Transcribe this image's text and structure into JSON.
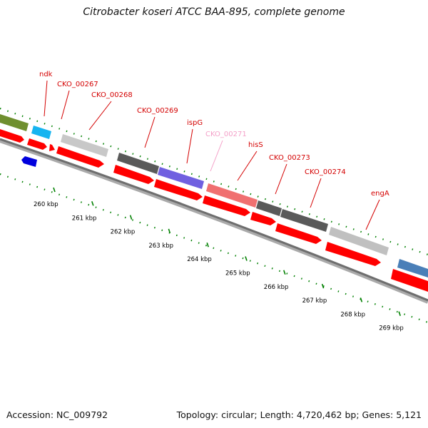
{
  "header": {
    "title": "Citrobacter koseri ATCC BAA-895, complete genome"
  },
  "footer": {
    "accession": "Accession: NC_009792",
    "summary": "Topology: circular; Length: 4,720,462 bp; Genes: 5,121"
  },
  "gene_labels": [
    {
      "text": "ndk",
      "color": "#d40000"
    },
    {
      "text": "CKO_00267",
      "color": "#d40000"
    },
    {
      "text": "CKO_00268",
      "color": "#d40000"
    },
    {
      "text": "CKO_00269",
      "color": "#d40000"
    },
    {
      "text": "ispG",
      "color": "#d40000"
    },
    {
      "text": "CKO_00271",
      "color": "#f4a0c8"
    },
    {
      "text": "hisS",
      "color": "#d40000"
    },
    {
      "text": "CKO_00273",
      "color": "#d40000"
    },
    {
      "text": "CKO_00274",
      "color": "#d40000"
    },
    {
      "text": "engA",
      "color": "#d40000"
    }
  ],
  "ruler_ticks": [
    "260 kbp",
    "261 kbp",
    "262 kbp",
    "263 kbp",
    "264 kbp",
    "265 kbp",
    "266 kbp",
    "267 kbp",
    "268 kbp",
    "269 kbp"
  ],
  "colors": {
    "cds": "#ff0000",
    "gc_dots": "#008000",
    "backbone": "#888888"
  }
}
